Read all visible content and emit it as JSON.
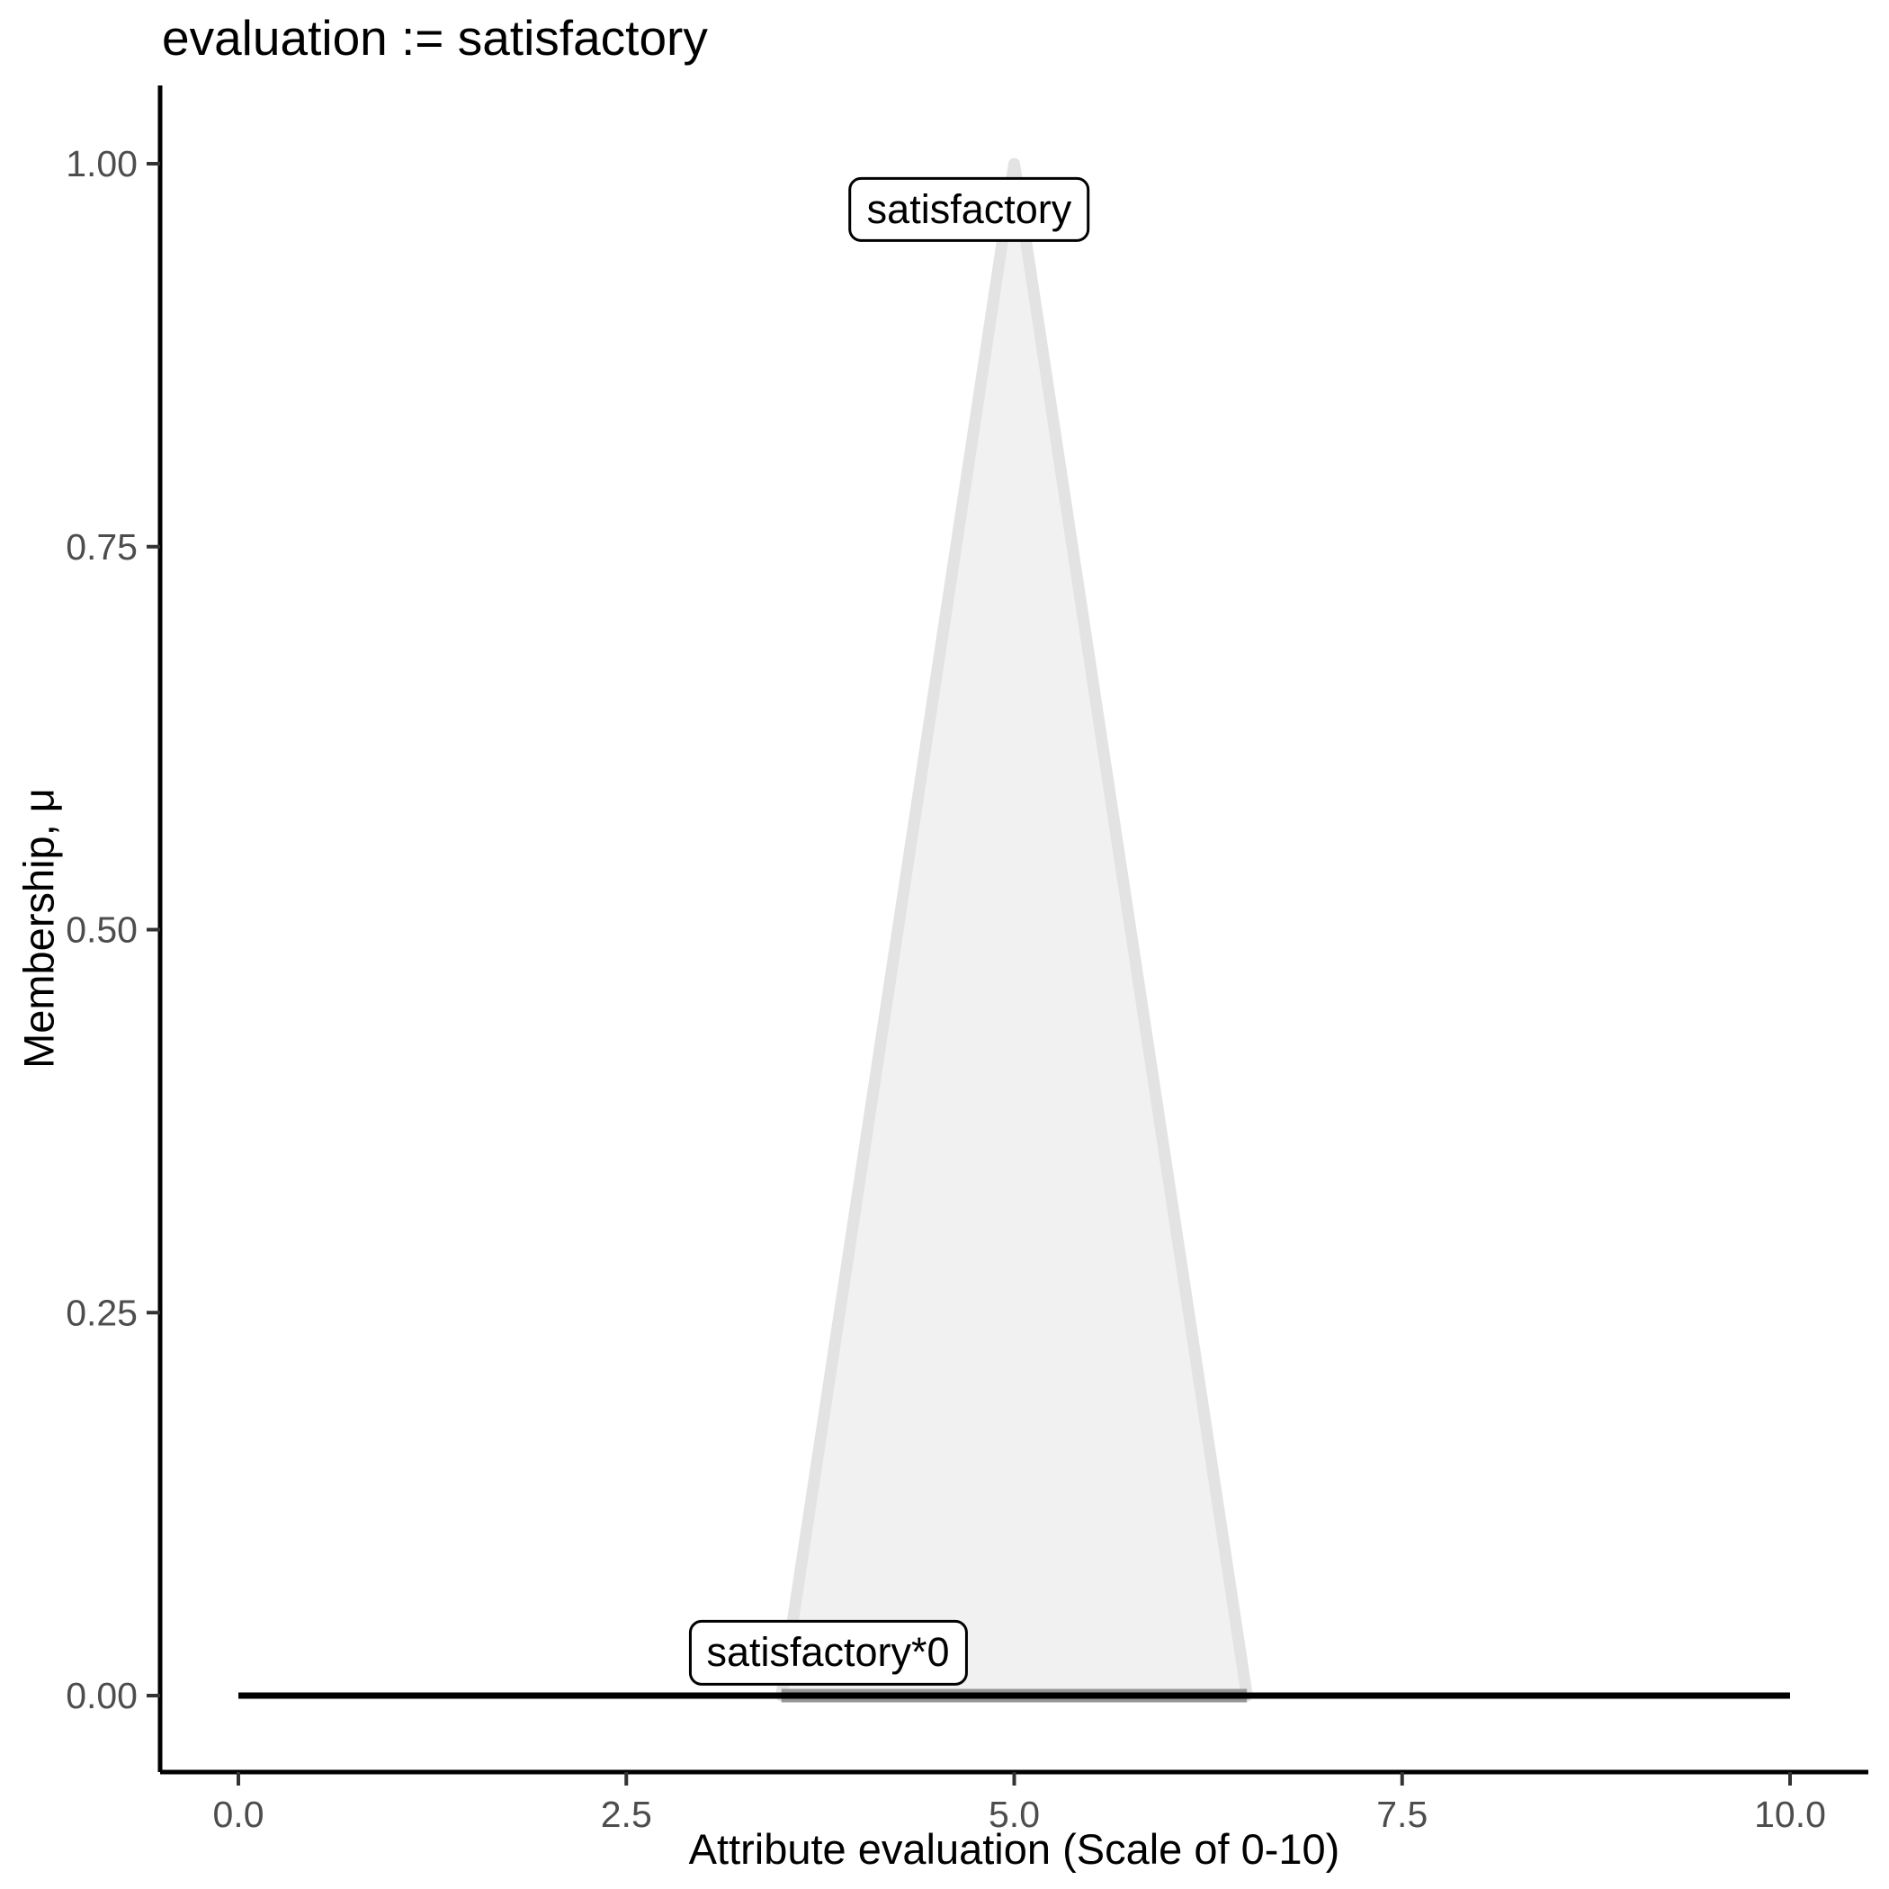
{
  "title": "evaluation := satisfactory",
  "chart_data": {
    "type": "area",
    "title": "evaluation := satisfactory",
    "xlabel": "Attribute evaluation (Scale of 0-10)",
    "ylabel": "Membership, μ",
    "xlim": [
      0,
      10
    ],
    "ylim": [
      0,
      1
    ],
    "grid": false,
    "legend": false,
    "x_ticks": [
      {
        "value": 0,
        "label": "0.0"
      },
      {
        "value": 2.5,
        "label": "2.5"
      },
      {
        "value": 5,
        "label": "5.0"
      },
      {
        "value": 7.5,
        "label": "7.5"
      },
      {
        "value": 10,
        "label": "10.0"
      }
    ],
    "y_ticks": [
      {
        "value": 0,
        "label": "0.00"
      },
      {
        "value": 0.25,
        "label": "0.25"
      },
      {
        "value": 0.5,
        "label": "0.50"
      },
      {
        "value": 0.75,
        "label": "0.75"
      },
      {
        "value": 1,
        "label": "1.00"
      }
    ],
    "series": [
      {
        "name": "satisfactory",
        "shape": "filled-polygon",
        "description": "triangular fuzzy membership function",
        "points": [
          [
            3.5,
            0
          ],
          [
            5,
            1
          ],
          [
            6.5,
            0
          ]
        ],
        "fill": "#f1f1f1",
        "stroke": "#e3e3e3",
        "stroke_width": 13,
        "label": {
          "text": "satisfactory",
          "x": 4.71,
          "y": 0.97
        }
      },
      {
        "name": "satisfactory*0",
        "shape": "line",
        "description": "membership function scaled by 0 (flat at zero over support)",
        "points": [
          [
            3.5,
            0
          ],
          [
            6.5,
            0
          ]
        ],
        "stroke": "#969696",
        "stroke_width": 15,
        "label": {
          "text": "satisfactory*0",
          "x": 3.8,
          "y": 0.028
        }
      },
      {
        "name": "zero-baseline",
        "shape": "line",
        "description": "zero membership baseline across full domain",
        "points": [
          [
            0,
            0
          ],
          [
            10,
            0
          ]
        ],
        "stroke": "#000000",
        "stroke_width": 7,
        "label": null
      }
    ],
    "axis": {
      "line_color": "#000000",
      "tick_color": "#333333",
      "tick_label_color": "#4d4d4d"
    }
  }
}
